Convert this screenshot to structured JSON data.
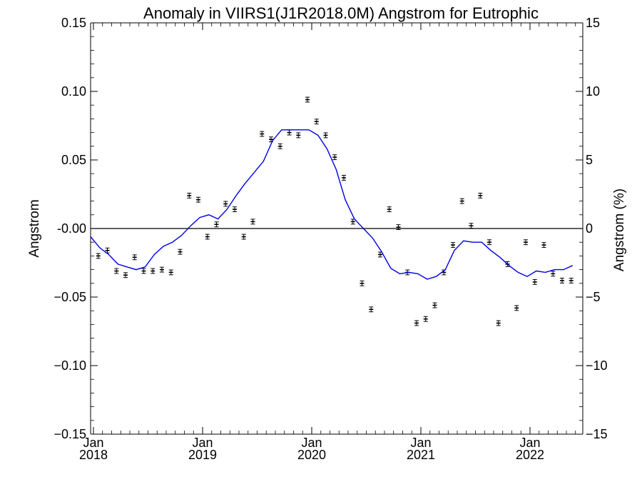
{
  "chart_data": {
    "type": "line",
    "title": "Anomaly in VIIRS1(J1R2018.0M) Angstrom for Eutrophic",
    "ylabel": "Angstrom",
    "ylabel_right": "Angstrom (%)",
    "xlabel": "",
    "x_range": [
      "2018-01",
      "2022-06"
    ],
    "ylim": [
      -0.15,
      0.15
    ],
    "ylim_right": [
      -15,
      15
    ],
    "y_ticks": [
      "0.15",
      "0.10",
      "0.05",
      "-0.00",
      "−0.05",
      "−0.10",
      "−0.15"
    ],
    "y_tick_values": [
      0.15,
      0.1,
      0.05,
      0.0,
      -0.05,
      -0.1,
      -0.15
    ],
    "y_ticks_right": [
      "15",
      "10",
      "5",
      "0",
      "−5",
      "−10",
      "−15"
    ],
    "y_tick_values_right": [
      15,
      10,
      5,
      0,
      -5,
      -10,
      -15
    ],
    "x_ticks": [
      {
        "month": "Jan",
        "year": "2018",
        "date": "2018-01"
      },
      {
        "month": "Jan",
        "year": "2019",
        "date": "2019-01"
      },
      {
        "month": "Jan",
        "year": "2020",
        "date": "2020-01"
      },
      {
        "month": "Jan",
        "year": "2021",
        "date": "2021-01"
      },
      {
        "month": "Jan",
        "year": "2022",
        "date": "2022-01"
      }
    ],
    "reference_line": 0,
    "grid": false,
    "colors": {
      "trend": "#0000e6",
      "points": "#000000",
      "zero_line": "#000000"
    },
    "series": [
      {
        "style": "points-with-error-bars",
        "error": 0.001,
        "x": [
          "2018-02",
          "2018-03",
          "2018-04",
          "2018-05",
          "2018-06",
          "2018-07",
          "2018-08",
          "2018-09",
          "2018-10",
          "2018-11",
          "2018-12",
          "2019-01",
          "2019-02",
          "2019-03",
          "2019-04",
          "2019-05",
          "2019-06",
          "2019-07",
          "2019-08",
          "2019-09",
          "2019-10",
          "2019-11",
          "2019-12",
          "2020-01",
          "2020-02",
          "2020-03",
          "2020-04",
          "2020-05",
          "2020-06",
          "2020-07",
          "2020-08",
          "2020-09",
          "2020-10",
          "2020-11",
          "2020-12",
          "2021-01",
          "2021-02",
          "2021-03",
          "2021-04",
          "2021-05",
          "2021-06",
          "2021-07",
          "2021-08",
          "2021-09",
          "2021-10",
          "2021-11",
          "2021-12",
          "2022-01",
          "2022-02",
          "2022-03",
          "2022-04",
          "2022-05",
          "2022-06"
        ],
        "y": [
          -0.02,
          -0.016,
          -0.031,
          -0.034,
          -0.021,
          -0.031,
          -0.031,
          -0.03,
          -0.032,
          -0.017,
          0.024,
          0.021,
          -0.006,
          0.003,
          0.018,
          0.014,
          -0.006,
          0.005,
          0.069,
          0.065,
          0.06,
          0.07,
          0.068,
          0.094,
          0.078,
          0.068,
          0.052,
          0.037,
          0.005,
          -0.04,
          -0.059,
          -0.019,
          0.014,
          0.001,
          -0.032,
          -0.069,
          -0.066,
          -0.056,
          -0.032,
          -0.012,
          0.02,
          0.002,
          0.024,
          -0.01,
          -0.069,
          -0.026,
          -0.058,
          -0.01,
          -0.039,
          -0.012,
          -0.033,
          -0.038,
          -0.038
        ]
      },
      {
        "style": "line",
        "x": [
          "2018-01",
          "2018-02",
          "2018-03",
          "2018-04",
          "2018-05",
          "2018-06",
          "2018-07",
          "2018-08",
          "2018-09",
          "2018-10",
          "2018-11",
          "2018-12",
          "2019-01",
          "2019-02",
          "2019-03",
          "2019-04",
          "2019-05",
          "2019-06",
          "2019-07",
          "2019-08",
          "2019-09",
          "2019-10",
          "2019-11",
          "2019-12",
          "2020-01",
          "2020-02",
          "2020-03",
          "2020-04",
          "2020-05",
          "2020-06",
          "2020-07",
          "2020-08",
          "2020-09",
          "2020-10",
          "2020-11",
          "2020-12",
          "2021-01",
          "2021-02",
          "2021-03",
          "2021-04",
          "2021-05",
          "2021-06",
          "2021-07",
          "2021-08",
          "2021-09",
          "2021-10",
          "2021-11",
          "2021-12",
          "2022-01",
          "2022-02",
          "2022-03",
          "2022-04",
          "2022-05",
          "2022-06"
        ],
        "y": [
          -0.006,
          -0.014,
          -0.019,
          -0.026,
          -0.028,
          -0.03,
          -0.028,
          -0.019,
          -0.013,
          -0.01,
          -0.005,
          0.002,
          0.008,
          0.01,
          0.007,
          0.014,
          0.024,
          0.033,
          0.041,
          0.049,
          0.064,
          0.072,
          0.072,
          0.072,
          0.072,
          0.068,
          0.058,
          0.043,
          0.021,
          0.007,
          0.0,
          -0.007,
          -0.017,
          -0.029,
          -0.033,
          -0.032,
          -0.033,
          -0.037,
          -0.035,
          -0.03,
          -0.016,
          -0.009,
          -0.01,
          -0.01,
          -0.016,
          -0.021,
          -0.027,
          -0.032,
          -0.035,
          -0.031,
          -0.032,
          -0.03,
          -0.03,
          -0.027
        ]
      }
    ]
  }
}
